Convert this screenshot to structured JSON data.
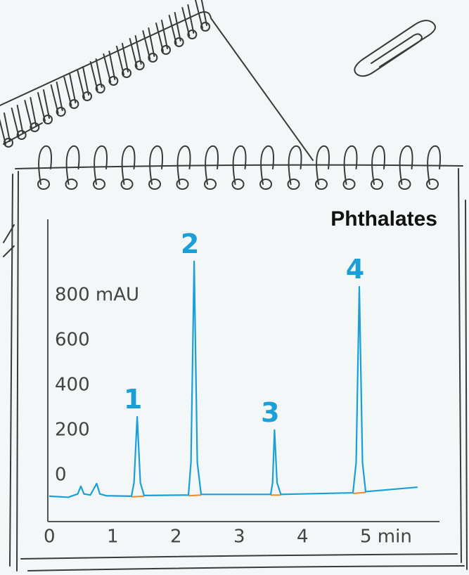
{
  "chart_data": {
    "type": "line",
    "title": "Phthalates",
    "x": [
      0,
      0.3,
      0.45,
      0.5,
      0.55,
      0.65,
      0.75,
      0.8,
      0.9,
      1.3,
      1.34,
      1.39,
      1.44,
      1.5,
      2.2,
      2.24,
      2.29,
      2.34,
      2.4,
      3.5,
      3.53,
      3.56,
      3.6,
      3.66,
      4.8,
      4.85,
      4.9,
      4.95,
      5.0,
      5.82
    ],
    "series": [
      {
        "color": "#1a9fd8",
        "values": [
          0,
          -5,
          10,
          44,
          10,
          5,
          56,
          10,
          2,
          0,
          60,
          353,
          60,
          3,
          5,
          150,
          1044,
          150,
          8,
          8,
          60,
          294,
          60,
          8,
          15,
          150,
          931,
          150,
          20,
          40
        ]
      }
    ],
    "annotations": [
      "1",
      "2",
      "3",
      "4"
    ],
    "xlim": [
      0,
      6.17
    ],
    "ylim": [
      -112,
      1237
    ],
    "xticks": [
      0,
      1,
      2,
      3,
      4,
      {
        "value": 5,
        "label": "5 min"
      }
    ],
    "yticks": [
      0,
      200,
      400,
      600,
      {
        "value": 800,
        "label": "800 mAU"
      }
    ]
  }
}
